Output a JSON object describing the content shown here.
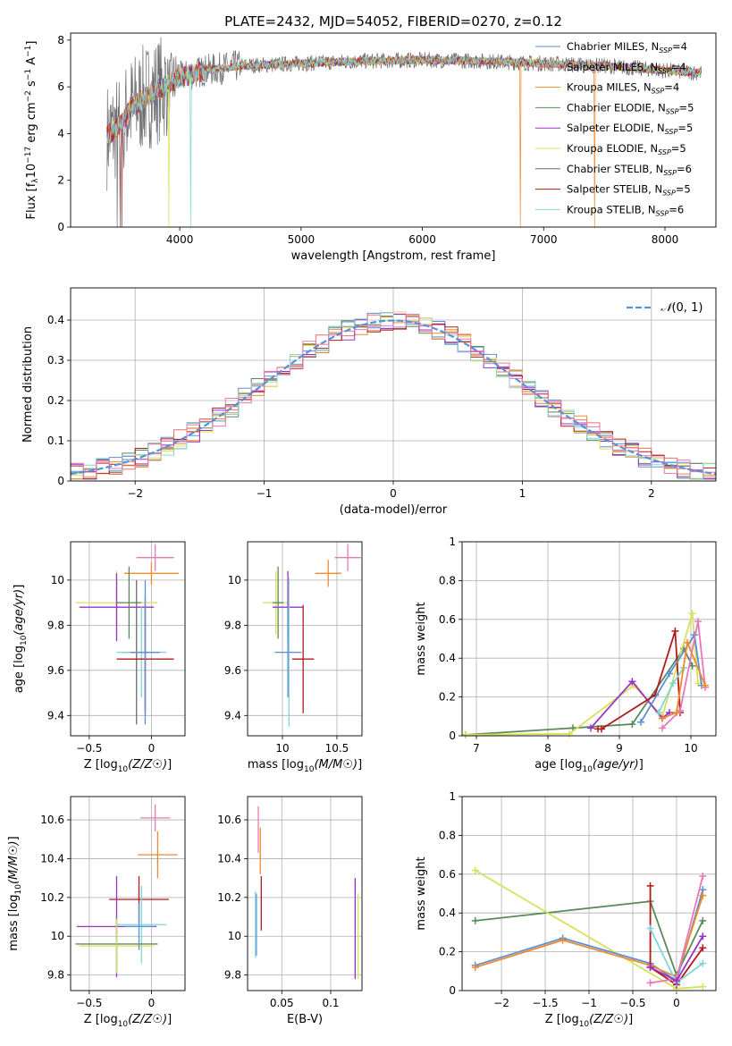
{
  "figure_title": "PLATE=2432, MJD=54052, FIBERID=0270, z=0.12",
  "colors": {
    "Chabrier MILES": "#5b8fd6",
    "Salpeter MILES": "#ee6e6e",
    "Kroupa MILES": "#ee8a2c",
    "Chabrier ELODIE": "#5a8a5a",
    "Salpeter ELODIE": "#9b30c9",
    "Kroupa ELODIE": "#d9e05a",
    "Chabrier STELIB": "#6b6b6b",
    "Salpeter STELIB": "#b31b1b",
    "Kroupa STELIB": "#7fd6d6",
    "gaussian": "#5b8fd6",
    "pink": "#e878b8",
    "grid": "#b0b0b0"
  },
  "chart_data": [
    {
      "id": "spectrum",
      "type": "line",
      "title": "PLATE=2432, MJD=54052, FIBERID=0270, z=0.12",
      "xlabel": "wavelength [Angstrom, rest frame]",
      "ylabel": "Flux [f$_\\lambda$10$^{-17}$ erg cm$^{-2}$ s$^{-1}$ A$^{-1}$]",
      "xlim": [
        3100,
        8420
      ],
      "ylim": [
        0,
        8.3
      ],
      "xticks": [
        4000,
        5000,
        6000,
        7000,
        8000
      ],
      "yticks": [
        0,
        2,
        4,
        6,
        8
      ],
      "grid": false,
      "legend_position": "top-right",
      "legend": [
        {
          "name": "Chabrier MILES",
          "label": "Chabrier MILES, N",
          "sub": "SSP",
          "tail": "=4"
        },
        {
          "name": "Salpeter MILES",
          "label": "Salpeter MILES, N",
          "sub": "SSP",
          "tail": "=4"
        },
        {
          "name": "Kroupa MILES",
          "label": "Kroupa MILES, N",
          "sub": "SSP",
          "tail": "=4"
        },
        {
          "name": "Chabrier ELODIE",
          "label": "Chabrier ELODIE, N",
          "sub": "SSP",
          "tail": "=5"
        },
        {
          "name": "Salpeter ELODIE",
          "label": "Salpeter ELODIE, N",
          "sub": "SSP",
          "tail": "=5"
        },
        {
          "name": "Kroupa ELODIE",
          "label": "Kroupa ELODIE, N",
          "sub": "SSP",
          "tail": "=5"
        },
        {
          "name": "Chabrier STELIB",
          "label": "Chabrier STELIB, N",
          "sub": "SSP",
          "tail": "=6"
        },
        {
          "name": "Salpeter STELIB",
          "label": "Salpeter STELIB, N",
          "sub": "SSP",
          "tail": "=5"
        },
        {
          "name": "Kroupa STELIB",
          "label": "Kroupa STELIB, N",
          "sub": "SSP",
          "tail": "=6"
        }
      ],
      "continuum_x": [
        3400,
        3450,
        3500,
        3600,
        3700,
        3800,
        3900,
        4000,
        4200,
        4500,
        5000,
        5500,
        6000,
        6500,
        7000,
        7500,
        8000,
        8300
      ],
      "continuum_y": [
        3.9,
        4.1,
        4.3,
        5.1,
        5.5,
        5.8,
        6.1,
        6.4,
        6.7,
        6.9,
        7.0,
        7.1,
        7.15,
        7.1,
        7.0,
        6.9,
        6.7,
        6.6
      ]
    },
    {
      "id": "residuals",
      "type": "line",
      "xlabel": "(data-model)/error",
      "ylabel": "Normed distribution",
      "xlim": [
        -2.5,
        2.5
      ],
      "ylim": [
        0,
        0.48
      ],
      "xticks": [
        -2,
        -1,
        0,
        1,
        2
      ],
      "yticks": [
        0.0,
        0.1,
        0.2,
        0.3,
        0.4
      ],
      "grid": true,
      "legend_position": "top-right",
      "legend": [
        {
          "name": "gaussian",
          "label": "N(0, 1)"
        }
      ],
      "gaussian": {
        "mean": 0,
        "sigma": 1
      }
    },
    {
      "id": "age_vs_Z",
      "type": "scatter",
      "xlabel": "Z [log10(Z/Z☉)]",
      "ylabel": "age  [log10(age/yr)]",
      "xlim": [
        -0.65,
        0.27
      ],
      "ylim": [
        9.31,
        10.17
      ],
      "xticks": [
        -0.5,
        0.0
      ],
      "yticks": [
        9.4,
        9.6,
        9.8,
        10.0
      ],
      "grid": true,
      "points": [
        {
          "x": 0.0,
          "y": 10.03,
          "xerr": 0.22,
          "yerr": 0.05,
          "c": "Kroupa MILES"
        },
        {
          "x": 0.03,
          "y": 10.1,
          "xerr": 0.15,
          "yerr": 0.06,
          "c": "pink"
        },
        {
          "x": -0.28,
          "y": 9.9,
          "xerr": 0.33,
          "yerr": 0.14,
          "c": "Kroupa ELODIE"
        },
        {
          "x": -0.28,
          "y": 9.88,
          "xerr": 0.3,
          "yerr": 0.15,
          "c": "Salpeter ELODIE"
        },
        {
          "x": -0.18,
          "y": 9.9,
          "xerr": 0.1,
          "yerr": 0.16,
          "c": "Chabrier ELODIE"
        },
        {
          "x": -0.12,
          "y": 9.68,
          "xerr": 0.12,
          "yerr": 0.32,
          "c": "Chabrier STELIB"
        },
        {
          "x": -0.08,
          "y": 9.68,
          "xerr": 0.2,
          "yerr": 0.2,
          "c": "Kroupa STELIB"
        },
        {
          "x": -0.05,
          "y": 9.68,
          "xerr": 0.12,
          "yerr": 0.25,
          "c": "Chabrier MILES"
        },
        {
          "x": -0.05,
          "y": 9.65,
          "xerr": 0.23,
          "yerr": 0.24,
          "c": "Salpeter STELIB"
        },
        {
          "x": -0.05,
          "y": 9.68,
          "xerr": 0.12,
          "yerr": 0.32,
          "c": "Chabrier MILES"
        }
      ]
    },
    {
      "id": "age_vs_mass",
      "type": "scatter",
      "xlabel": "mass [log10(M/M☉)]",
      "ylabel": "",
      "xlim": [
        9.68,
        10.73
      ],
      "ylim": [
        9.31,
        10.17
      ],
      "xticks": [
        10.0,
        10.5
      ],
      "yticks": [
        9.4,
        9.6,
        9.8,
        10.0
      ],
      "grid": true,
      "points": [
        {
          "x": 10.42,
          "y": 10.03,
          "xerr": 0.12,
          "yerr": 0.06,
          "c": "Kroupa MILES"
        },
        {
          "x": 10.6,
          "y": 10.1,
          "xerr": 0.12,
          "yerr": 0.06,
          "c": "pink"
        },
        {
          "x": 9.94,
          "y": 9.9,
          "xerr": 0.12,
          "yerr": 0.14,
          "c": "Kroupa ELODIE"
        },
        {
          "x": 10.05,
          "y": 9.88,
          "xerr": 0.14,
          "yerr": 0.16,
          "c": "Salpeter ELODIE"
        },
        {
          "x": 9.96,
          "y": 9.9,
          "xerr": 0.05,
          "yerr": 0.16,
          "c": "Chabrier ELODIE"
        },
        {
          "x": 10.06,
          "y": 9.68,
          "xerr": 0.12,
          "yerr": 0.33,
          "c": "Kroupa STELIB"
        },
        {
          "x": 10.05,
          "y": 9.68,
          "xerr": 0.12,
          "yerr": 0.2,
          "c": "Chabrier MILES"
        },
        {
          "x": 10.19,
          "y": 9.65,
          "xerr": 0.1,
          "yerr": 0.24,
          "c": "Salpeter STELIB"
        }
      ]
    },
    {
      "id": "weight_vs_age",
      "type": "line",
      "xlabel": "age  [log10(age/yr)]",
      "ylabel": "mass weight",
      "xlim": [
        6.8,
        10.35
      ],
      "ylim": [
        0,
        1.0
      ],
      "xticks": [
        7,
        8,
        9,
        10
      ],
      "yticks": [
        0.0,
        0.2,
        0.4,
        0.6,
        0.8,
        1.0
      ],
      "grid": true,
      "series": [
        {
          "c": "Chabrier ELODIE",
          "x": [
            6.85,
            8.35,
            9.18,
            9.9,
            10.02
          ],
          "y": [
            0.005,
            0.04,
            0.06,
            0.45,
            0.36
          ]
        },
        {
          "c": "Kroupa ELODIE",
          "x": [
            6.85,
            8.3,
            9.2,
            9.6,
            10.02,
            10.1
          ],
          "y": [
            0.005,
            0.01,
            0.26,
            0.1,
            0.63,
            0.27
          ]
        },
        {
          "c": "Salpeter ELODIE",
          "x": [
            8.6,
            9.18,
            9.6,
            9.7
          ],
          "y": [
            0.04,
            0.28,
            0.09,
            0.12
          ]
        },
        {
          "c": "Salpeter STELIB",
          "x": [
            8.7,
            8.75,
            9.5,
            9.78,
            9.85
          ],
          "y": [
            0.035,
            0.035,
            0.21,
            0.54,
            0.12
          ]
        },
        {
          "c": "Chabrier MILES",
          "x": [
            9.3,
            9.7,
            10.05,
            10.15
          ],
          "y": [
            0.07,
            0.32,
            0.52,
            0.26
          ]
        },
        {
          "c": "Kroupa STELIB",
          "x": [
            9.55,
            9.75,
            9.9
          ],
          "y": [
            0.12,
            0.27,
            0.35
          ]
        },
        {
          "c": "pink",
          "x": [
            9.6,
            9.85,
            10.1,
            10.2
          ],
          "y": [
            0.04,
            0.13,
            0.59,
            0.25
          ]
        },
        {
          "c": "Kroupa MILES",
          "x": [
            9.6,
            9.8,
            9.95,
            10.2
          ],
          "y": [
            0.09,
            0.12,
            0.48,
            0.26
          ]
        }
      ]
    },
    {
      "id": "mass_vs_Z",
      "type": "scatter",
      "xlabel": "Z [log10(Z/Z☉)]",
      "ylabel": "mass [log10(M/M☉)]",
      "xlim": [
        -0.65,
        0.27
      ],
      "ylim": [
        9.72,
        10.72
      ],
      "xticks": [
        -0.5,
        0.0
      ],
      "yticks": [
        9.8,
        10.0,
        10.2,
        10.4,
        10.6
      ],
      "grid": true,
      "points": [
        {
          "x": 0.03,
          "y": 10.61,
          "xerr": 0.12,
          "yerr": 0.07,
          "c": "pink"
        },
        {
          "x": 0.05,
          "y": 10.42,
          "xerr": 0.16,
          "yerr": 0.12,
          "c": "Kroupa MILES"
        },
        {
          "x": -0.1,
          "y": 10.19,
          "xerr": 0.24,
          "yerr": 0.12,
          "c": "Salpeter STELIB"
        },
        {
          "x": -0.28,
          "y": 10.05,
          "xerr": 0.32,
          "yerr": 0.26,
          "c": "Salpeter ELODIE"
        },
        {
          "x": -0.08,
          "y": 10.06,
          "xerr": 0.2,
          "yerr": 0.2,
          "c": "Kroupa STELIB"
        },
        {
          "x": -0.28,
          "y": 9.96,
          "xerr": 0.33,
          "yerr": 0.14,
          "c": "Chabrier ELODIE"
        },
        {
          "x": -0.28,
          "y": 9.95,
          "xerr": 0.3,
          "yerr": 0.14,
          "c": "Kroupa ELODIE"
        },
        {
          "x": -0.1,
          "y": 10.05,
          "xerr": 0.12,
          "yerr": 0.12,
          "c": "Chabrier MILES"
        }
      ]
    },
    {
      "id": "mass_vs_ebv",
      "type": "scatter",
      "xlabel": "E(B-V)",
      "ylabel": "",
      "xlim": [
        0.015,
        0.132
      ],
      "ylim": [
        9.72,
        10.72
      ],
      "xticks": [
        0.05,
        0.1
      ],
      "yticks": [
        9.8,
        10.0,
        10.2,
        10.4,
        10.6
      ],
      "grid": true,
      "points": [
        {
          "x": 0.026,
          "y": 10.55,
          "xerr": 0,
          "yerr": 0.12,
          "c": "pink"
        },
        {
          "x": 0.028,
          "y": 10.44,
          "xerr": 0,
          "yerr": 0.12,
          "c": "Kroupa MILES"
        },
        {
          "x": 0.029,
          "y": 10.17,
          "xerr": 0,
          "yerr": 0.14,
          "c": "Salpeter STELIB"
        },
        {
          "x": 0.024,
          "y": 10.06,
          "xerr": 0,
          "yerr": 0.16,
          "c": "Chabrier MILES"
        },
        {
          "x": 0.023,
          "y": 10.06,
          "xerr": 0,
          "yerr": 0.17,
          "c": "Kroupa STELIB"
        },
        {
          "x": 0.125,
          "y": 10.04,
          "xerr": 0,
          "yerr": 0.26,
          "c": "Salpeter ELODIE"
        },
        {
          "x": 0.128,
          "y": 10.0,
          "xerr": 0,
          "yerr": 0.22,
          "c": "Kroupa ELODIE"
        }
      ]
    },
    {
      "id": "weight_vs_Z",
      "type": "line",
      "xlabel": "Z [log10(Z/Z☉)]",
      "ylabel": "mass weight",
      "xlim": [
        -2.45,
        0.45
      ],
      "ylim": [
        0,
        1.0
      ],
      "xticks": [
        -2.0,
        -1.5,
        -1.0,
        -0.5,
        0.0
      ],
      "yticks": [
        0.0,
        0.2,
        0.4,
        0.6,
        0.8,
        1.0
      ],
      "grid": true,
      "series": [
        {
          "c": "Chabrier ELODIE",
          "x": [
            -2.3,
            -0.3,
            0.0,
            0.3
          ],
          "y": [
            0.36,
            0.46,
            0.08,
            0.36
          ]
        },
        {
          "c": "Kroupa ELODIE",
          "x": [
            -2.3,
            0.0,
            0.3
          ],
          "y": [
            0.62,
            0.01,
            0.02
          ]
        },
        {
          "c": "Chabrier MILES",
          "x": [
            -2.3,
            -1.3,
            -0.3,
            0.0,
            0.3
          ],
          "y": [
            0.13,
            0.27,
            0.14,
            0.05,
            0.52
          ]
        },
        {
          "c": "Kroupa MILES",
          "x": [
            -2.3,
            -1.3,
            -0.3,
            0.0,
            0.3
          ],
          "y": [
            0.12,
            0.26,
            0.13,
            0.07,
            0.49
          ]
        },
        {
          "c": "Salpeter STELIB",
          "x": [
            -0.3,
            -0.3,
            0.0,
            0.3
          ],
          "y": [
            0.54,
            0.12,
            0.03,
            0.22
          ]
        },
        {
          "c": "Kroupa STELIB",
          "x": [
            -0.3,
            0.0,
            0.3
          ],
          "y": [
            0.32,
            0.04,
            0.14
          ]
        },
        {
          "c": "pink",
          "x": [
            -0.3,
            0.0,
            0.3
          ],
          "y": [
            0.04,
            0.06,
            0.59
          ]
        },
        {
          "c": "Salpeter ELODIE",
          "x": [
            -0.3,
            0.0,
            0.3
          ],
          "y": [
            0.12,
            0.05,
            0.28
          ]
        }
      ]
    }
  ]
}
